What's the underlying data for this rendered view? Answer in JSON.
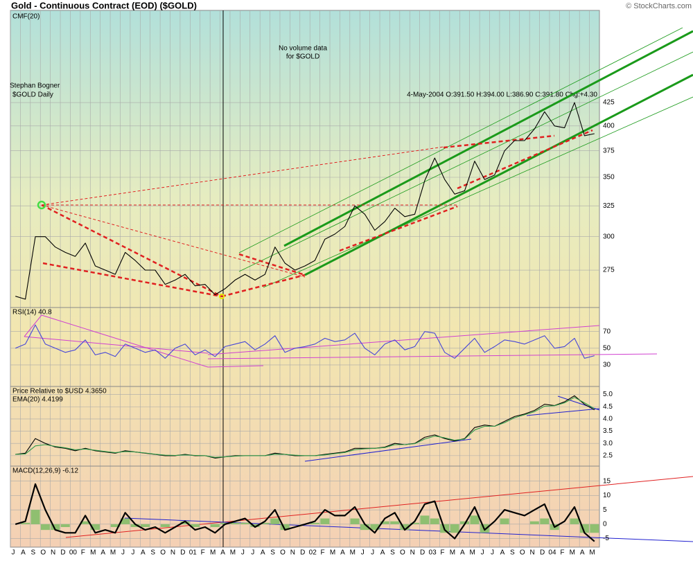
{
  "header": {
    "title": "Gold - Continuous Contract (EOD) ($GOLD)",
    "copyright": "© StockCharts.com"
  },
  "annotations": {
    "cmf": "CMF(20)",
    "no_volume_1": "No volume data",
    "no_volume_2": "for $GOLD",
    "author": "Stephan Bogner",
    "quote": "4-May-2004  O:391.50  H:394.00  L:386.90  C:391.80  Chg:+4.30"
  },
  "chart_data": [
    {
      "type": "line",
      "log_scale": true,
      "grid": true,
      "ylim": [
        250,
        540
      ],
      "yticks": [
        275,
        300,
        325,
        350,
        375,
        400,
        425
      ],
      "series": [
        {
          "name": "$GOLD Daily",
          "color": "#000000",
          "values": [
            257,
            255,
            300,
            300,
            292,
            288,
            285,
            295,
            278,
            275,
            272,
            288,
            282,
            275,
            275,
            265,
            268,
            272,
            264,
            265,
            258,
            262,
            268,
            272,
            268,
            272,
            292,
            280,
            275,
            278,
            282,
            298,
            302,
            308,
            325,
            318,
            305,
            312,
            323,
            316,
            318,
            347,
            368,
            348,
            335,
            338,
            365,
            348,
            352,
            375,
            385,
            385,
            397,
            415,
            400,
            398,
            425,
            390,
            392
          ]
        }
      ]
    },
    {
      "type": "line",
      "grid": true,
      "ylim": [
        5,
        98
      ],
      "yticks": [
        30,
        50,
        70
      ],
      "series": [
        {
          "name": "RSI(14) 40.8",
          "color": "#4646d8",
          "values": [
            50,
            55,
            78,
            55,
            50,
            45,
            48,
            60,
            42,
            45,
            40,
            55,
            50,
            45,
            48,
            38,
            50,
            55,
            42,
            48,
            40,
            52,
            55,
            58,
            48,
            55,
            65,
            45,
            50,
            52,
            55,
            62,
            58,
            60,
            68,
            50,
            42,
            55,
            60,
            48,
            52,
            70,
            68,
            45,
            38,
            50,
            62,
            45,
            52,
            60,
            58,
            55,
            60,
            65,
            50,
            52,
            62,
            38,
            41
          ]
        }
      ]
    },
    {
      "type": "line",
      "grid": true,
      "ylim": [
        2.1,
        5.3
      ],
      "yticks": [
        2.5,
        {
          "value": 3,
          "label": "3.0"
        },
        3.5,
        {
          "value": 4,
          "label": "4.0"
        },
        4.5,
        {
          "value": 5,
          "label": "5.0"
        }
      ],
      "series": [
        {
          "name": "Price Relative to $USD 4.3650",
          "color": "#000000",
          "values": [
            2.55,
            2.6,
            3.2,
            3.0,
            2.85,
            2.8,
            2.7,
            2.8,
            2.7,
            2.65,
            2.6,
            2.7,
            2.65,
            2.6,
            2.55,
            2.5,
            2.5,
            2.55,
            2.5,
            2.5,
            2.4,
            2.45,
            2.5,
            2.5,
            2.5,
            2.5,
            2.6,
            2.55,
            2.5,
            2.5,
            2.5,
            2.55,
            2.6,
            2.65,
            2.8,
            2.8,
            2.8,
            2.85,
            3.0,
            2.95,
            3.0,
            3.25,
            3.35,
            3.2,
            3.1,
            3.2,
            3.65,
            3.75,
            3.7,
            3.9,
            4.1,
            4.2,
            4.35,
            4.6,
            4.55,
            4.7,
            4.95,
            4.6,
            4.37
          ]
        },
        {
          "name": "EMA(20) 4.4199",
          "color": "#2e9a4a",
          "values": [
            2.55,
            2.57,
            2.9,
            2.95,
            2.88,
            2.82,
            2.74,
            2.77,
            2.72,
            2.67,
            2.62,
            2.67,
            2.65,
            2.61,
            2.56,
            2.52,
            2.51,
            2.53,
            2.51,
            2.5,
            2.43,
            2.45,
            2.48,
            2.5,
            2.5,
            2.5,
            2.56,
            2.55,
            2.52,
            2.5,
            2.5,
            2.53,
            2.58,
            2.63,
            2.74,
            2.78,
            2.8,
            2.83,
            2.95,
            2.95,
            2.99,
            3.18,
            3.3,
            3.23,
            3.13,
            3.18,
            3.55,
            3.7,
            3.7,
            3.85,
            4.05,
            4.17,
            4.3,
            4.52,
            4.54,
            4.66,
            4.88,
            4.66,
            4.42
          ]
        }
      ]
    },
    {
      "type": "line",
      "grid": true,
      "ylim": [
        -8,
        20
      ],
      "yticks": [
        -5,
        0,
        5,
        10,
        15
      ],
      "categories": [
        "J",
        "A",
        "S",
        "O",
        "N",
        "D",
        "00",
        "F",
        "M",
        "A",
        "M",
        "J",
        "J",
        "A",
        "S",
        "O",
        "N",
        "D",
        "01",
        "F",
        "M",
        "A",
        "M",
        "J",
        "J",
        "A",
        "S",
        "O",
        "N",
        "D",
        "02",
        "F",
        "M",
        "A",
        "M",
        "J",
        "J",
        "A",
        "S",
        "O",
        "N",
        "D",
        "03",
        "F",
        "M",
        "A",
        "M",
        "J",
        "J",
        "A",
        "S",
        "O",
        "N",
        "D",
        "04",
        "F",
        "M",
        "A",
        "M"
      ],
      "series": [
        {
          "type": "bar",
          "color": "#8fbf70",
          "values": [
            0,
            0.5,
            5,
            -2,
            -2,
            -1,
            0,
            1,
            -2,
            0,
            -1,
            2,
            -1,
            -1,
            0,
            -1,
            0,
            1,
            -1,
            0,
            -1,
            0.5,
            0.5,
            0.5,
            -1,
            0.5,
            2,
            -2,
            0,
            0,
            0.5,
            2,
            0,
            0,
            2,
            -2,
            -2,
            1,
            1,
            -2,
            0.5,
            3,
            2,
            -3,
            -3,
            1,
            3,
            -3,
            0,
            2,
            0,
            0,
            1,
            2,
            -2,
            0,
            2,
            -3,
            -3
          ]
        },
        {
          "name": "MACD(12,26,9) -6.12",
          "color": "#000000",
          "values": [
            0,
            1,
            14,
            5,
            -2,
            -3,
            -3,
            3,
            -3,
            -2,
            -3,
            4,
            0,
            -2,
            -1,
            -3,
            -1,
            1,
            -2,
            -1,
            -3,
            0,
            1,
            2,
            -1,
            1,
            5,
            -2,
            -1,
            0,
            1,
            5,
            3,
            3,
            6,
            0,
            -3,
            2,
            4,
            -2,
            1,
            7,
            8,
            -2,
            -5,
            0,
            6,
            -2,
            1,
            5,
            4,
            3,
            5,
            7,
            -1,
            1,
            6,
            -3,
            -6
          ]
        }
      ]
    }
  ]
}
